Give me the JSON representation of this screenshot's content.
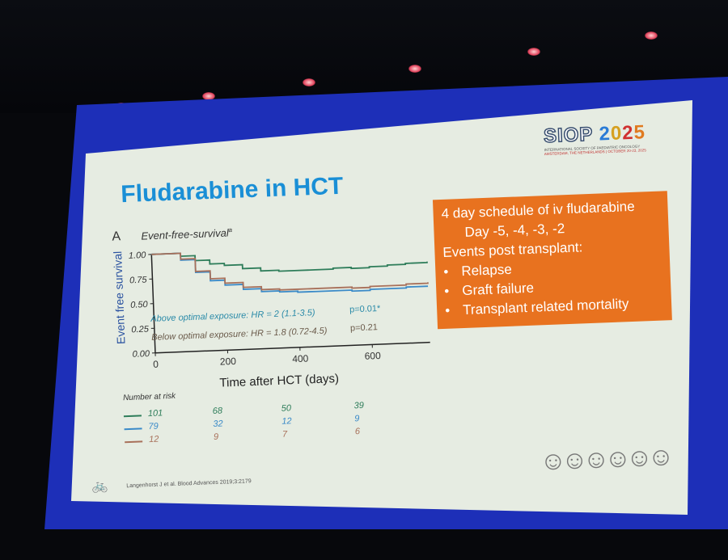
{
  "slide": {
    "title": "Fludarabine in HCT",
    "logo": {
      "name": "SIOP 2025",
      "org": "INTERNATIONAL SOCIETY OF PAEDIATRIC ONCOLOGY",
      "event": "AMSTERDAM, THE NETHERLANDS | OCTOBER 20-23, 2025"
    },
    "info_box": {
      "line1": "4 day schedule of iv fludarabine",
      "line2": "Day -5, -4, -3, -2",
      "line3": "Events post transplant:",
      "bullets": [
        "Relapse",
        "Graft failure",
        "Transplant related mortality"
      ]
    },
    "reference": "Langenhorst J et al. Blood Advances 2019;3:2179"
  },
  "chart_data": {
    "type": "line",
    "panel_label": "A",
    "title": "Event-free-survival",
    "title_superscript": "a",
    "xlabel": "Time after HCT (days)",
    "ylabel": "Event free survival",
    "xlim": [
      0,
      760
    ],
    "ylim": [
      0,
      1
    ],
    "xticks": [
      "0",
      "200",
      "400",
      "600"
    ],
    "yticks": [
      "0.00",
      "0.25",
      "0.50",
      "0.75",
      "1.00"
    ],
    "annotations": [
      {
        "text": "Above optimal exposure: HR = 2 (1.1-3.5)",
        "p": "p=0.01*",
        "color": "#2a8aa8"
      },
      {
        "text": "Below optimal exposure: HR = 1.8 (0.72-4.5)",
        "p": "p=0.21",
        "color": "#6a5a4a"
      }
    ],
    "series": [
      {
        "name": "optimal",
        "color": "#2e7d5a",
        "x": [
          40,
          80,
          120,
          160,
          200,
          250,
          300,
          350,
          400,
          450,
          500,
          550,
          600,
          650,
          700,
          760
        ],
        "y": [
          1.0,
          0.97,
          0.92,
          0.88,
          0.86,
          0.82,
          0.79,
          0.78,
          0.78,
          0.78,
          0.79,
          0.78,
          0.79,
          0.8,
          0.81,
          0.82
        ]
      },
      {
        "name": "above",
        "color": "#3a8ac8",
        "x": [
          40,
          80,
          120,
          160,
          200,
          250,
          300,
          350,
          400,
          450,
          500,
          550,
          600,
          650,
          700,
          760
        ],
        "y": [
          1.0,
          0.93,
          0.8,
          0.71,
          0.66,
          0.61,
          0.58,
          0.57,
          0.56,
          0.56,
          0.56,
          0.55,
          0.56,
          0.56,
          0.57,
          0.57
        ]
      },
      {
        "name": "below",
        "color": "#a8705a",
        "x": [
          40,
          80,
          120,
          160,
          200,
          250,
          300,
          350,
          400,
          450,
          500,
          550,
          600,
          650,
          700,
          760
        ],
        "y": [
          1.0,
          0.94,
          0.81,
          0.73,
          0.68,
          0.63,
          0.6,
          0.59,
          0.59,
          0.59,
          0.59,
          0.58,
          0.59,
          0.59,
          0.6,
          0.61
        ]
      }
    ],
    "number_at_risk": {
      "label": "Number at risk",
      "rows": [
        {
          "color": "#2e7d5a",
          "values": [
            "101",
            "68",
            "50",
            "39"
          ]
        },
        {
          "color": "#3a8ac8",
          "values": [
            "79",
            "32",
            "12",
            "9"
          ]
        },
        {
          "color": "#a8705a",
          "values": [
            "12",
            "9",
            "7",
            "6"
          ]
        }
      ]
    }
  }
}
